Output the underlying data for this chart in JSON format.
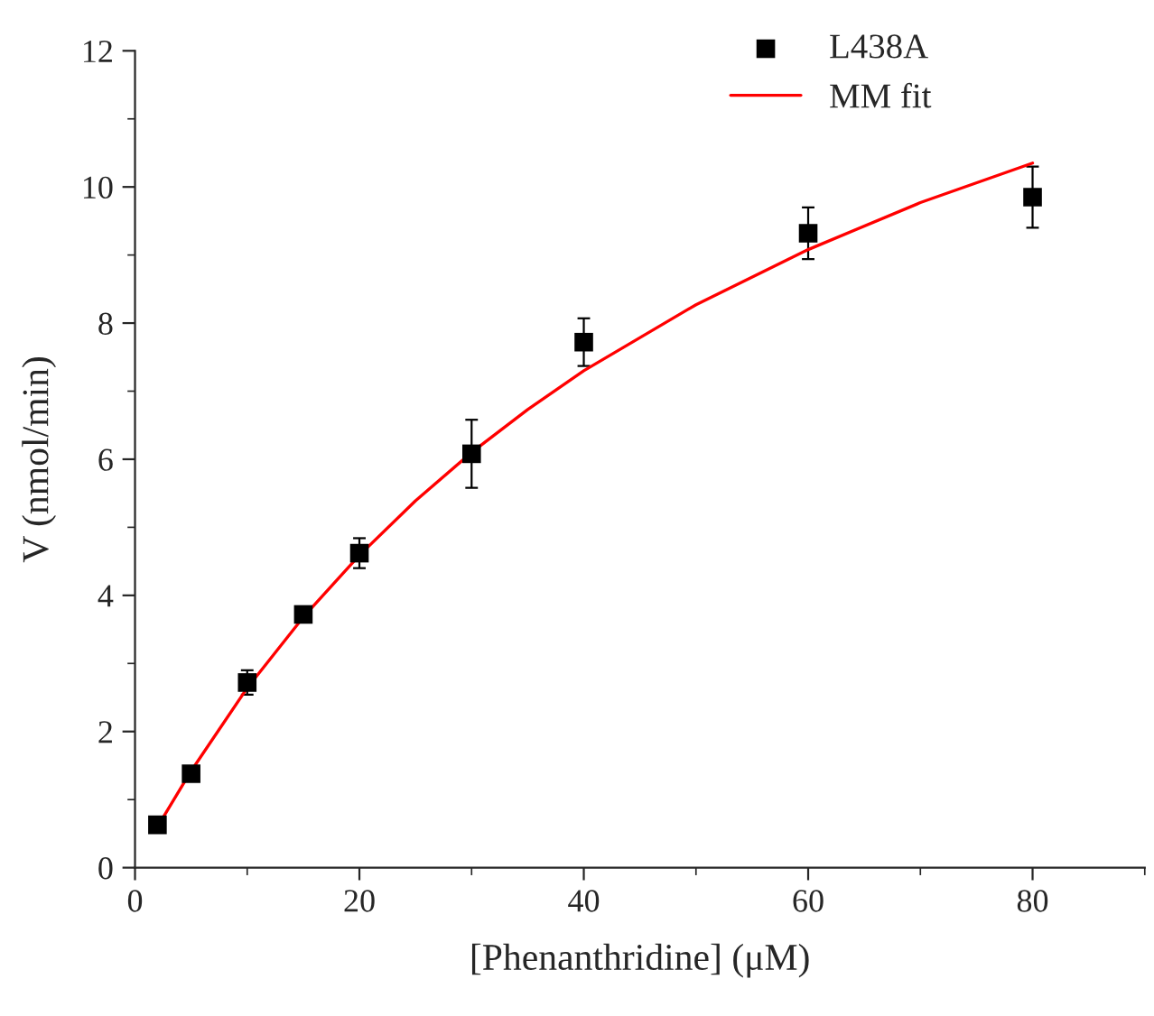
{
  "chart_data": {
    "type": "scatter",
    "xlabel": "[Phenanthridine] (μM)",
    "ylabel": "V (nmol/min)",
    "xlim": [
      0,
      90
    ],
    "xticks": [
      0,
      20,
      40,
      60,
      80
    ],
    "ylim": [
      0,
      12
    ],
    "yticks": [
      0,
      2,
      4,
      6,
      8,
      10,
      12
    ],
    "grid": false,
    "legend": "top right",
    "series": [
      {
        "name": "L438A",
        "marker": "square",
        "color": "#000000",
        "x": [
          2,
          5,
          10,
          15,
          20,
          30,
          40,
          60,
          80
        ],
        "values": [
          0.63,
          1.38,
          2.72,
          3.72,
          4.62,
          6.08,
          7.72,
          9.32,
          9.85
        ],
        "errors": [
          0.05,
          0.05,
          0.18,
          0.05,
          0.22,
          0.5,
          0.35,
          0.38,
          0.45
        ]
      },
      {
        "name": "MM fit",
        "type": "line",
        "marker": "none",
        "line_style": "solid",
        "color": "#ff0000",
        "x": [
          2,
          5,
          10,
          15,
          20,
          25,
          30,
          35,
          40,
          50,
          60,
          70,
          80
        ],
        "values": [
          0.6,
          1.42,
          2.64,
          3.68,
          4.59,
          5.39,
          6.1,
          6.73,
          7.3,
          8.27,
          9.08,
          9.77,
          10.35
        ]
      }
    ]
  }
}
